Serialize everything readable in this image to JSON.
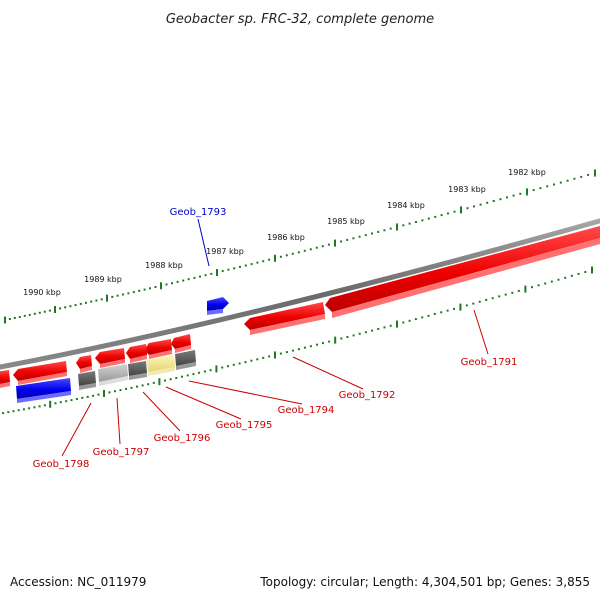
{
  "title": "Geobacter sp. FRC-32, complete genome",
  "footer": {
    "accession": "Accession: NC_011979",
    "summary": "Topology: circular; Length: 4,304,501 bp; Genes: 3,855"
  },
  "scale_labels": [
    "1982 kbp",
    "1983 kbp",
    "1984 kbp",
    "1985 kbp",
    "1986 kbp",
    "1987 kbp",
    "1988 kbp",
    "1989 kbp",
    "1990 kbp"
  ],
  "genes": [
    {
      "id": "Geob_1791",
      "strand": "minus",
      "color": "#ff0000"
    },
    {
      "id": "Geob_1792",
      "strand": "minus",
      "color": "#ff0000"
    },
    {
      "id": "Geob_1793",
      "strand": "plus",
      "color": "#0000ff"
    },
    {
      "id": "Geob_1794",
      "strand": "minus",
      "color": "#555555"
    },
    {
      "id": "Geob_1795",
      "strand": "minus",
      "color": "#f0e68c"
    },
    {
      "id": "Geob_1796",
      "strand": "minus",
      "color": "#555555"
    },
    {
      "id": "Geob_1797",
      "strand": "minus",
      "color": "#aaaaaa"
    },
    {
      "id": "Geob_1798",
      "strand": "minus",
      "color": "#555555"
    }
  ],
  "colors": {
    "backbone": "#808080",
    "scale": "#227722",
    "red_gene": "#ff0000",
    "blue_gene": "#0000ff",
    "dark_gray_gene": "#555555",
    "light_gray_gene": "#aaaaaa",
    "khaki_gene": "#f0e68c",
    "label_red": "#cc0000",
    "label_blue": "#0000cc"
  }
}
